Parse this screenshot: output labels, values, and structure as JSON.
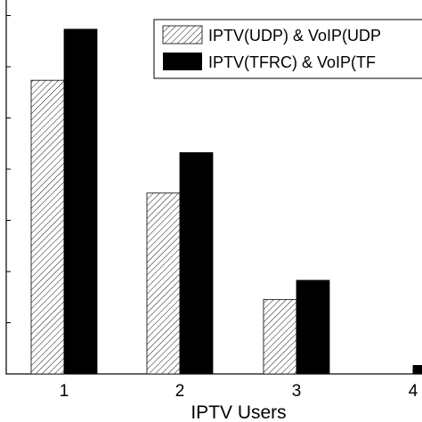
{
  "chart_data": {
    "type": "bar",
    "xlabel": "IPTV Users",
    "ylabel": "",
    "title": "",
    "categories": [
      "1",
      "2",
      "3",
      "4"
    ],
    "series": [
      {
        "name": "IPTV(UDP) & VoIP(UDP)",
        "values": [
          6.9,
          4.25,
          1.75,
          0.0
        ],
        "pattern": "hatched"
      },
      {
        "name": "IPTV(TFRC) & VoIP(TFRC)",
        "values": [
          8.1,
          5.2,
          2.2,
          0.2
        ],
        "color": "#000000"
      }
    ],
    "ylim": [
      0,
      9
    ],
    "grid": false,
    "legend": {
      "position": "top-right",
      "labels": [
        "IPTV(UDP) & VoIP(UDP",
        "IPTV(TFRC) & VoIP(TF"
      ]
    }
  }
}
